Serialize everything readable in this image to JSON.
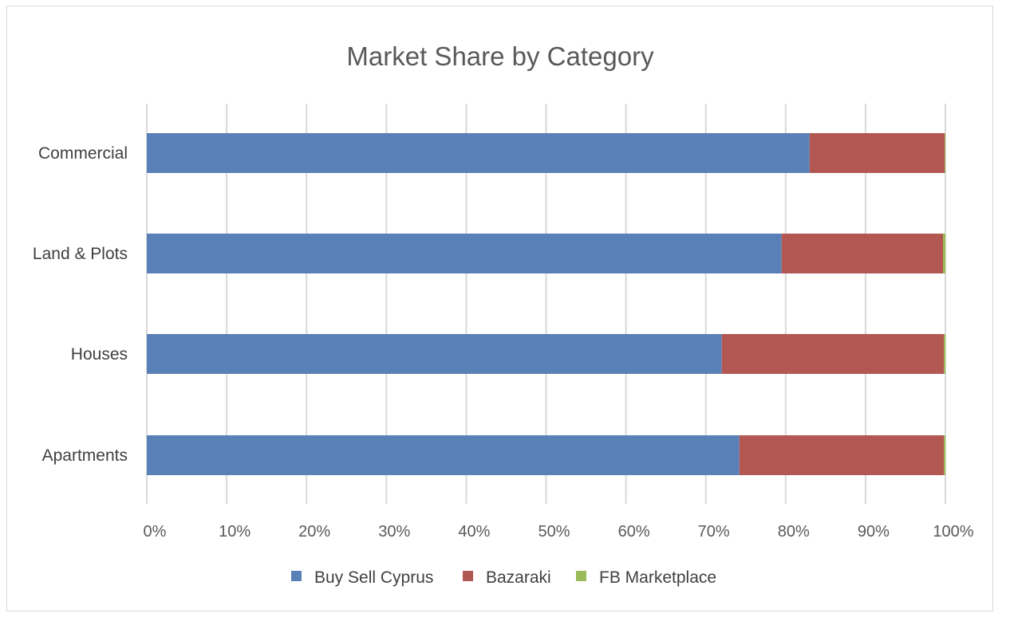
{
  "chart_data": {
    "type": "bar",
    "orientation": "horizontal",
    "stacked": "percent",
    "title": "Market Share by Category",
    "categories": [
      "Commercial",
      "Land & Plots",
      "Houses",
      "Apartments"
    ],
    "series": [
      {
        "name": "Buy Sell Cyprus",
        "color": "#5a80b8",
        "values": [
          83,
          79.5,
          72,
          74.2
        ]
      },
      {
        "name": "Bazaraki",
        "color": "#b35752",
        "values": [
          16.9,
          20.2,
          27.8,
          25.6
        ]
      },
      {
        "name": "FB Marketplace",
        "color": "#9bbb59",
        "values": [
          0.1,
          0.3,
          0.2,
          0.2
        ]
      }
    ],
    "x_ticks": [
      "0%",
      "10%",
      "20%",
      "30%",
      "40%",
      "50%",
      "60%",
      "70%",
      "80%",
      "90%",
      "100%"
    ],
    "xlim": [
      0,
      100
    ],
    "grid": true,
    "legend_position": "bottom"
  }
}
